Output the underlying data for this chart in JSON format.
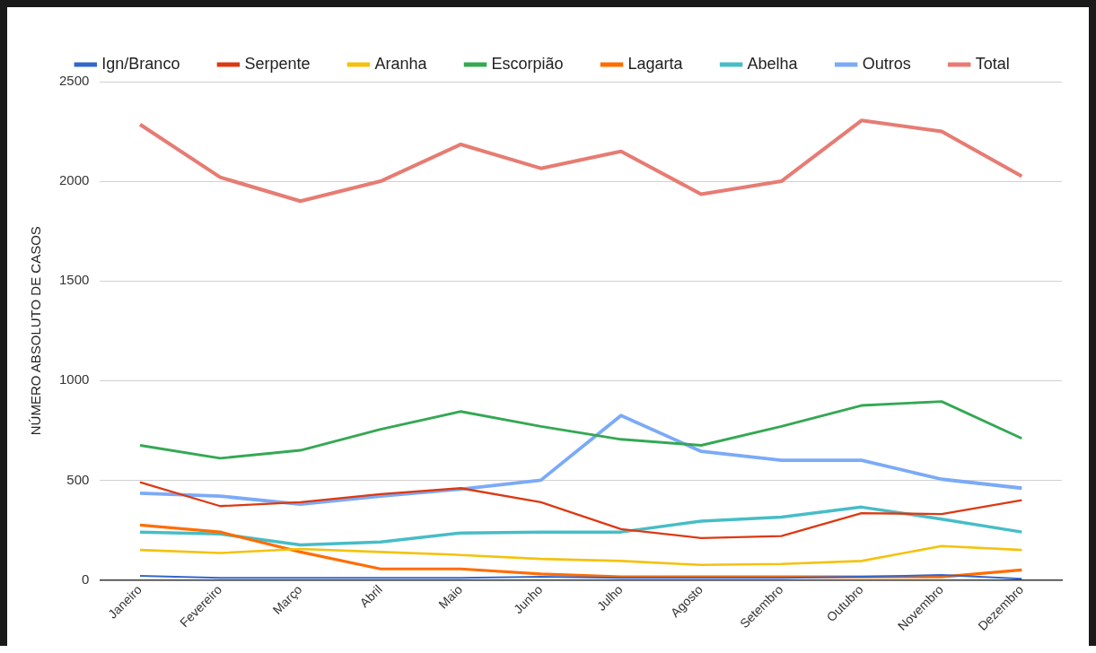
{
  "chart_data": {
    "type": "line",
    "ylabel": "NÚMERO ABSOLUTO DE CASOS",
    "categories": [
      "Janeiro",
      "Fevereiro",
      "Março",
      "Abril",
      "Maio",
      "Junho",
      "Julho",
      "Agosto",
      "Setembro",
      "Outubro",
      "Novembro",
      "Dezembro"
    ],
    "series": [
      {
        "name": "Ign/Branco",
        "color": "#3366cc",
        "values": [
          20,
          10,
          10,
          10,
          10,
          15,
          10,
          10,
          10,
          15,
          25,
          5
        ]
      },
      {
        "name": "Serpente",
        "color": "#dc3912",
        "values": [
          490,
          370,
          390,
          430,
          460,
          390,
          255,
          210,
          220,
          335,
          330,
          400
        ]
      },
      {
        "name": "Aranha",
        "color": "#f4c20d",
        "values": [
          150,
          135,
          155,
          140,
          125,
          105,
          95,
          75,
          80,
          95,
          170,
          150
        ]
      },
      {
        "name": "Escorpião",
        "color": "#34a853",
        "values": [
          675,
          610,
          650,
          755,
          845,
          770,
          705,
          675,
          770,
          875,
          895,
          710
        ]
      },
      {
        "name": "Lagarta",
        "color": "#ff6d01",
        "values": [
          275,
          240,
          140,
          55,
          55,
          30,
          15,
          15,
          15,
          15,
          15,
          50
        ]
      },
      {
        "name": "Abelha",
        "color": "#46bdc6",
        "values": [
          240,
          230,
          175,
          190,
          235,
          240,
          240,
          295,
          315,
          365,
          305,
          240
        ]
      },
      {
        "name": "Outros",
        "color": "#7baaf7",
        "values": [
          435,
          420,
          380,
          420,
          455,
          500,
          825,
          645,
          600,
          600,
          505,
          460
        ]
      },
      {
        "name": "Total",
        "color": "#e67c73",
        "values": [
          2285,
          2020,
          1900,
          2000,
          2185,
          2065,
          2150,
          1935,
          2000,
          2305,
          2250,
          2025
        ]
      }
    ],
    "ylim": [
      0,
      2500
    ],
    "yticks": [
      0,
      500,
      1000,
      1500,
      2000,
      2500
    ],
    "grid": "y",
    "legend": "top",
    "marker": "none",
    "line_style": "solid"
  }
}
